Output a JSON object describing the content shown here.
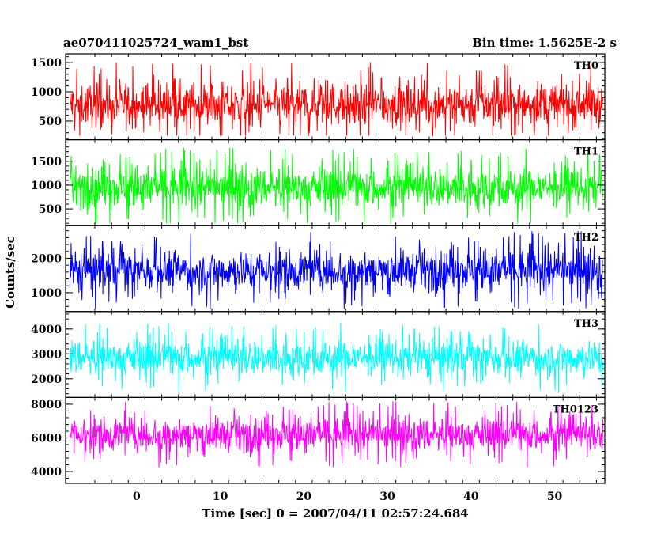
{
  "header": {
    "title_left": "ae070411025724_wam1_bst",
    "title_right": "Bin time: 1.5625E-2 s"
  },
  "chart_data": {
    "type": "line",
    "title": "ae070411025724_wam1_bst",
    "subtitle": "Bin time: 1.5625E-2 s",
    "xlabel": "Time [sec] 0 = 2007/04/11 02:57:24.684",
    "ylabel": "Counts/sec",
    "x_range": [
      -8.5,
      56
    ],
    "x_ticks": [
      0,
      10,
      20,
      30,
      40,
      50
    ],
    "bin_time_s": 0.015625,
    "data_x_range": [
      -8.0,
      55.8
    ],
    "grid": false,
    "legend": "none",
    "panels": [
      {
        "name": "TH0",
        "color": "#ff0000",
        "ylim": [
          180,
          1650
        ],
        "yticks": [
          500,
          1000,
          1500
        ],
        "mean": 780,
        "spread": 330,
        "min": 250,
        "max": 1650
      },
      {
        "name": "TH1",
        "color": "#00ff00",
        "ylim": [
          150,
          1950
        ],
        "yticks": [
          500,
          1000,
          1500
        ],
        "mean": 950,
        "spread": 380,
        "min": 200,
        "max": 1950
      },
      {
        "name": "TH2",
        "color": "#0000ff",
        "ylim": [
          450,
          2950
        ],
        "yticks": [
          1000,
          2000
        ],
        "mean": 1650,
        "spread": 520,
        "min": 500,
        "max": 2950
      },
      {
        "name": "TH3",
        "color": "#00ffff",
        "ylim": [
          1250,
          4700
        ],
        "yticks": [
          2000,
          3000,
          4000
        ],
        "mean": 2850,
        "spread": 650,
        "min": 1400,
        "max": 4700
      },
      {
        "name": "TH0123",
        "color": "#ff00ff",
        "ylim": [
          3300,
          8400
        ],
        "yticks": [
          4000,
          6000,
          8000
        ],
        "mean": 6200,
        "spread": 900,
        "min": 3400,
        "max": 8400
      }
    ]
  }
}
